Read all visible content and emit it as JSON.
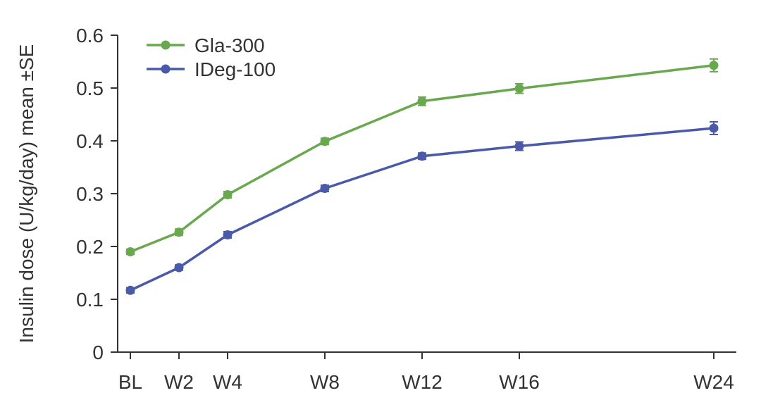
{
  "chart_data": {
    "type": "line",
    "title": "",
    "xlabel": "",
    "ylabel": "Insulin dose (U/kg/day) mean ±SE",
    "x_labels": [
      "BL",
      "W2",
      "W4",
      "W8",
      "W12",
      "W16",
      "W24"
    ],
    "x_weeks": [
      0,
      2,
      4,
      8,
      12,
      16,
      24
    ],
    "ylim": [
      0,
      0.6
    ],
    "yticks": [
      "0",
      "0.1",
      "0.2",
      "0.3",
      "0.4",
      "0.5",
      "0.6"
    ],
    "ytick_values": [
      0,
      0.1,
      0.2,
      0.3,
      0.4,
      0.5,
      0.6
    ],
    "grid": false,
    "legend_position": "top-left",
    "series": [
      {
        "name": "Gla-300",
        "color": "#6aa84f",
        "values": [
          0.19,
          0.227,
          0.298,
          0.399,
          0.475,
          0.499,
          0.543
        ],
        "errors": [
          0.005,
          0.006,
          0.006,
          0.006,
          0.008,
          0.009,
          0.012
        ]
      },
      {
        "name": "IDeg-100",
        "color": "#4a5aa8",
        "values": [
          0.117,
          0.16,
          0.222,
          0.31,
          0.371,
          0.39,
          0.424
        ],
        "errors": [
          0.005,
          0.005,
          0.006,
          0.006,
          0.006,
          0.008,
          0.012
        ]
      }
    ]
  }
}
